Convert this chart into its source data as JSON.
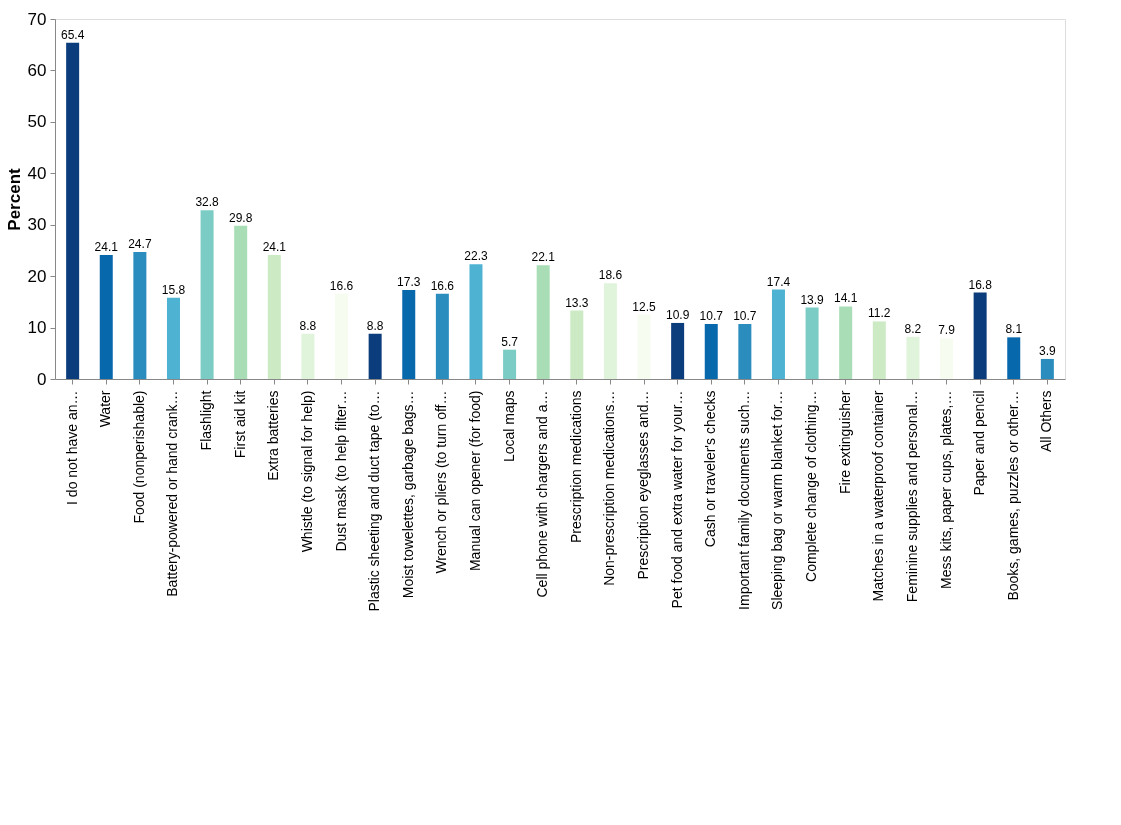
{
  "chart_data": {
    "type": "bar",
    "ylabel": "Percent",
    "categories": [
      "I do not have an…",
      "Water",
      "Food (nonperishable)",
      "Battery-powered or hand crank…",
      "Flashlight",
      "First aid kit",
      "Extra batteries",
      "Whistle (to signal for help)",
      "Dust mask (to help filter…",
      "Plastic sheeting and duct tape (to…",
      "Moist towelettes, garbage bags…",
      "Wrench or pliers (to turn off…",
      "Manual can opener (for food)",
      "Local maps",
      "Cell phone with chargers and a…",
      "Prescription medications",
      "Non-prescription medications…",
      "Prescription eyeglasses and…",
      "Pet food and extra water for your…",
      "Cash or traveler's checks",
      "Important family documents such…",
      "Sleeping bag or warm blanket for…",
      "Complete change of clothing…",
      "Fire extinguisher",
      "Matches in a waterproof container",
      "Feminine supplies and personal…",
      "Mess kits, paper cups, plates,…",
      "Paper and pencil",
      "Books, games, puzzles or other…",
      "All Others"
    ],
    "values": [
      65.4,
      24.1,
      24.7,
      15.8,
      32.8,
      29.8,
      24.1,
      8.8,
      16.6,
      8.8,
      17.3,
      16.6,
      22.3,
      5.7,
      22.1,
      13.3,
      18.6,
      12.5,
      10.9,
      10.7,
      10.7,
      17.4,
      13.9,
      14.1,
      11.2,
      8.2,
      7.9,
      16.8,
      8.1,
      3.9
    ],
    "colors": [
      "#0b3c7c",
      "#0868ac",
      "#2b8cbe",
      "#4eb3d3",
      "#7bccc4",
      "#a8ddb5",
      "#ccebc5",
      "#e0f3db",
      "#f7fcf0",
      "#0b3c7c",
      "#0868ac",
      "#2b8cbe",
      "#4eb3d3",
      "#7bccc4",
      "#a8ddb5",
      "#ccebc5",
      "#e0f3db",
      "#f7fcf0",
      "#0b3c7c",
      "#0868ac",
      "#2b8cbe",
      "#4eb3d3",
      "#7bccc4",
      "#a8ddb5",
      "#ccebc5",
      "#e0f3db",
      "#f7fcf0",
      "#0b3c7c",
      "#0868ac",
      "#2b8cbe"
    ],
    "ylim": [
      0,
      70
    ],
    "yticks": [
      0,
      10,
      20,
      30,
      40,
      50,
      60,
      70
    ],
    "grid": false,
    "data_labels": true
  }
}
